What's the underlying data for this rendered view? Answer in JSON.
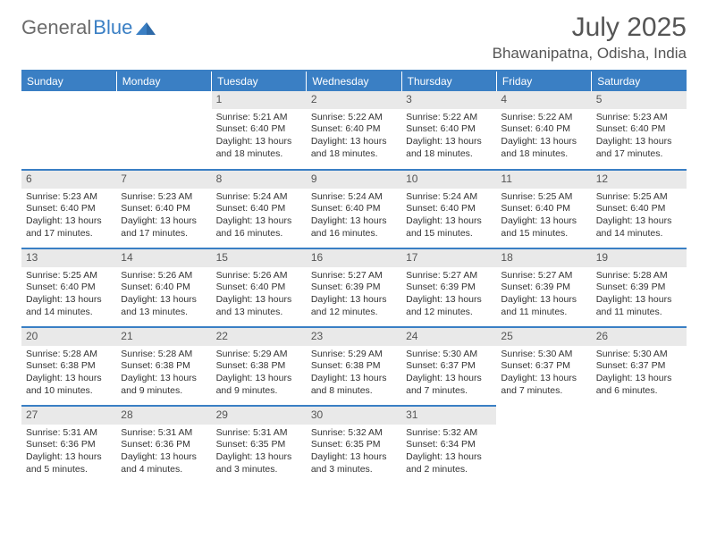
{
  "logo": {
    "general": "General",
    "blue": "Blue"
  },
  "title": "July 2025",
  "location": "Bhawanipatna, Odisha, India",
  "dayHeaders": [
    "Sunday",
    "Monday",
    "Tuesday",
    "Wednesday",
    "Thursday",
    "Friday",
    "Saturday"
  ],
  "colors": {
    "accent": "#3a7fc4",
    "headerText": "#ffffff",
    "dayNumBg": "#e9e9e9",
    "textGray": "#555555"
  },
  "weeks": [
    [
      null,
      null,
      {
        "n": "1",
        "sr": "Sunrise: 5:21 AM",
        "ss": "Sunset: 6:40 PM",
        "d1": "Daylight: 13 hours",
        "d2": "and 18 minutes."
      },
      {
        "n": "2",
        "sr": "Sunrise: 5:22 AM",
        "ss": "Sunset: 6:40 PM",
        "d1": "Daylight: 13 hours",
        "d2": "and 18 minutes."
      },
      {
        "n": "3",
        "sr": "Sunrise: 5:22 AM",
        "ss": "Sunset: 6:40 PM",
        "d1": "Daylight: 13 hours",
        "d2": "and 18 minutes."
      },
      {
        "n": "4",
        "sr": "Sunrise: 5:22 AM",
        "ss": "Sunset: 6:40 PM",
        "d1": "Daylight: 13 hours",
        "d2": "and 18 minutes."
      },
      {
        "n": "5",
        "sr": "Sunrise: 5:23 AM",
        "ss": "Sunset: 6:40 PM",
        "d1": "Daylight: 13 hours",
        "d2": "and 17 minutes."
      }
    ],
    [
      {
        "n": "6",
        "sr": "Sunrise: 5:23 AM",
        "ss": "Sunset: 6:40 PM",
        "d1": "Daylight: 13 hours",
        "d2": "and 17 minutes."
      },
      {
        "n": "7",
        "sr": "Sunrise: 5:23 AM",
        "ss": "Sunset: 6:40 PM",
        "d1": "Daylight: 13 hours",
        "d2": "and 17 minutes."
      },
      {
        "n": "8",
        "sr": "Sunrise: 5:24 AM",
        "ss": "Sunset: 6:40 PM",
        "d1": "Daylight: 13 hours",
        "d2": "and 16 minutes."
      },
      {
        "n": "9",
        "sr": "Sunrise: 5:24 AM",
        "ss": "Sunset: 6:40 PM",
        "d1": "Daylight: 13 hours",
        "d2": "and 16 minutes."
      },
      {
        "n": "10",
        "sr": "Sunrise: 5:24 AM",
        "ss": "Sunset: 6:40 PM",
        "d1": "Daylight: 13 hours",
        "d2": "and 15 minutes."
      },
      {
        "n": "11",
        "sr": "Sunrise: 5:25 AM",
        "ss": "Sunset: 6:40 PM",
        "d1": "Daylight: 13 hours",
        "d2": "and 15 minutes."
      },
      {
        "n": "12",
        "sr": "Sunrise: 5:25 AM",
        "ss": "Sunset: 6:40 PM",
        "d1": "Daylight: 13 hours",
        "d2": "and 14 minutes."
      }
    ],
    [
      {
        "n": "13",
        "sr": "Sunrise: 5:25 AM",
        "ss": "Sunset: 6:40 PM",
        "d1": "Daylight: 13 hours",
        "d2": "and 14 minutes."
      },
      {
        "n": "14",
        "sr": "Sunrise: 5:26 AM",
        "ss": "Sunset: 6:40 PM",
        "d1": "Daylight: 13 hours",
        "d2": "and 13 minutes."
      },
      {
        "n": "15",
        "sr": "Sunrise: 5:26 AM",
        "ss": "Sunset: 6:40 PM",
        "d1": "Daylight: 13 hours",
        "d2": "and 13 minutes."
      },
      {
        "n": "16",
        "sr": "Sunrise: 5:27 AM",
        "ss": "Sunset: 6:39 PM",
        "d1": "Daylight: 13 hours",
        "d2": "and 12 minutes."
      },
      {
        "n": "17",
        "sr": "Sunrise: 5:27 AM",
        "ss": "Sunset: 6:39 PM",
        "d1": "Daylight: 13 hours",
        "d2": "and 12 minutes."
      },
      {
        "n": "18",
        "sr": "Sunrise: 5:27 AM",
        "ss": "Sunset: 6:39 PM",
        "d1": "Daylight: 13 hours",
        "d2": "and 11 minutes."
      },
      {
        "n": "19",
        "sr": "Sunrise: 5:28 AM",
        "ss": "Sunset: 6:39 PM",
        "d1": "Daylight: 13 hours",
        "d2": "and 11 minutes."
      }
    ],
    [
      {
        "n": "20",
        "sr": "Sunrise: 5:28 AM",
        "ss": "Sunset: 6:38 PM",
        "d1": "Daylight: 13 hours",
        "d2": "and 10 minutes."
      },
      {
        "n": "21",
        "sr": "Sunrise: 5:28 AM",
        "ss": "Sunset: 6:38 PM",
        "d1": "Daylight: 13 hours",
        "d2": "and 9 minutes."
      },
      {
        "n": "22",
        "sr": "Sunrise: 5:29 AM",
        "ss": "Sunset: 6:38 PM",
        "d1": "Daylight: 13 hours",
        "d2": "and 9 minutes."
      },
      {
        "n": "23",
        "sr": "Sunrise: 5:29 AM",
        "ss": "Sunset: 6:38 PM",
        "d1": "Daylight: 13 hours",
        "d2": "and 8 minutes."
      },
      {
        "n": "24",
        "sr": "Sunrise: 5:30 AM",
        "ss": "Sunset: 6:37 PM",
        "d1": "Daylight: 13 hours",
        "d2": "and 7 minutes."
      },
      {
        "n": "25",
        "sr": "Sunrise: 5:30 AM",
        "ss": "Sunset: 6:37 PM",
        "d1": "Daylight: 13 hours",
        "d2": "and 7 minutes."
      },
      {
        "n": "26",
        "sr": "Sunrise: 5:30 AM",
        "ss": "Sunset: 6:37 PM",
        "d1": "Daylight: 13 hours",
        "d2": "and 6 minutes."
      }
    ],
    [
      {
        "n": "27",
        "sr": "Sunrise: 5:31 AM",
        "ss": "Sunset: 6:36 PM",
        "d1": "Daylight: 13 hours",
        "d2": "and 5 minutes."
      },
      {
        "n": "28",
        "sr": "Sunrise: 5:31 AM",
        "ss": "Sunset: 6:36 PM",
        "d1": "Daylight: 13 hours",
        "d2": "and 4 minutes."
      },
      {
        "n": "29",
        "sr": "Sunrise: 5:31 AM",
        "ss": "Sunset: 6:35 PM",
        "d1": "Daylight: 13 hours",
        "d2": "and 3 minutes."
      },
      {
        "n": "30",
        "sr": "Sunrise: 5:32 AM",
        "ss": "Sunset: 6:35 PM",
        "d1": "Daylight: 13 hours",
        "d2": "and 3 minutes."
      },
      {
        "n": "31",
        "sr": "Sunrise: 5:32 AM",
        "ss": "Sunset: 6:34 PM",
        "d1": "Daylight: 13 hours",
        "d2": "and 2 minutes."
      },
      null,
      null
    ]
  ]
}
